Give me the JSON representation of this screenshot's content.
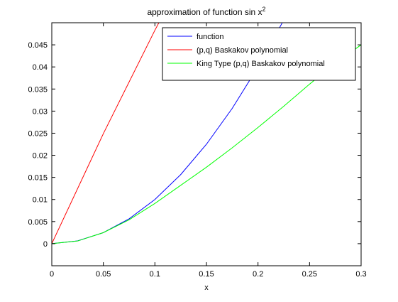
{
  "chart_data": {
    "type": "line",
    "title": "approximation of function sin x",
    "title_superscript": "2",
    "xlabel": "x",
    "ylabel": "",
    "xlim": [
      0,
      0.3
    ],
    "ylim": [
      -0.005,
      0.05
    ],
    "x_ticks": [
      0,
      0.05,
      0.1,
      0.15,
      0.2,
      0.25,
      0.3
    ],
    "x_tick_labels": [
      "0",
      "0.05",
      "0.1",
      "0.15",
      "0.2",
      "0.25",
      "0.3"
    ],
    "y_ticks": [
      0,
      0.005,
      0.01,
      0.015,
      0.02,
      0.025,
      0.03,
      0.035,
      0.04,
      0.045
    ],
    "y_tick_labels": [
      "0",
      "0.005",
      "0.01",
      "0.015",
      "0.02",
      "0.025",
      "0.03",
      "0.035",
      "0.04",
      "0.045"
    ],
    "grid": false,
    "legend_position": "top-right",
    "series": [
      {
        "name": "function",
        "color": "#0000ff",
        "x": [
          0,
          0.025,
          0.05,
          0.075,
          0.1,
          0.125,
          0.15,
          0.175,
          0.2,
          0.225
        ],
        "y": [
          0,
          0.000625,
          0.0025,
          0.005625,
          0.01,
          0.015625,
          0.0225,
          0.030625,
          0.04,
          0.050625
        ]
      },
      {
        "name": "(p,q) Baskakov polynomial",
        "color": "#ff0000",
        "x": [
          0,
          0.05,
          0.1,
          0.105
        ],
        "y": [
          0,
          0.0249,
          0.0483,
          0.0505
        ]
      },
      {
        "name": "King Type (p,q) Baskakov polynomial",
        "color": "#00ff00",
        "x": [
          0,
          0.025,
          0.05,
          0.075,
          0.1,
          0.125,
          0.15,
          0.175,
          0.2,
          0.225,
          0.25,
          0.275,
          0.3
        ],
        "y": [
          0,
          0.0006,
          0.0025,
          0.0054,
          0.0091,
          0.0132,
          0.0173,
          0.0217,
          0.0263,
          0.0311,
          0.0361,
          0.0408,
          0.045
        ]
      }
    ]
  }
}
